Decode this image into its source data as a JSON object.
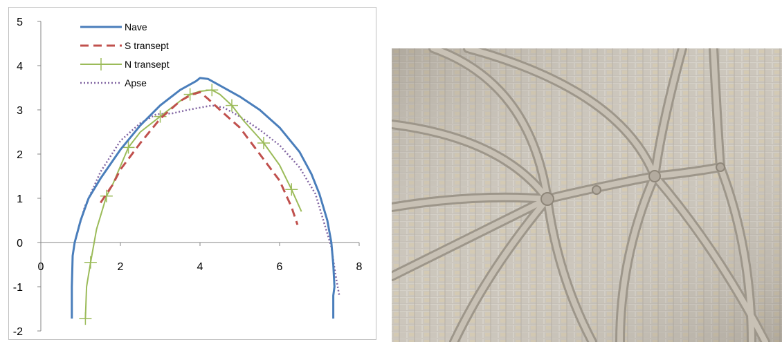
{
  "chart_data": {
    "type": "line",
    "title": "",
    "xlabel": "",
    "ylabel": "",
    "xlim": [
      0,
      8
    ],
    "ylim": [
      -2,
      5
    ],
    "x_ticks": [
      0,
      2,
      4,
      6,
      8
    ],
    "y_ticks": [
      -2,
      -1,
      0,
      1,
      2,
      3,
      4,
      5
    ],
    "grid": false,
    "legend_position": "top-left",
    "series": [
      {
        "name": "Nave",
        "color": "#4a7ebb",
        "style": "solid",
        "points": [
          [
            0.78,
            -1.72
          ],
          [
            0.78,
            -1.0
          ],
          [
            0.8,
            -0.3
          ],
          [
            0.85,
            0.0
          ],
          [
            1.0,
            0.5
          ],
          [
            1.2,
            1.0
          ],
          [
            1.5,
            1.45
          ],
          [
            2.0,
            2.1
          ],
          [
            2.5,
            2.65
          ],
          [
            3.0,
            3.1
          ],
          [
            3.5,
            3.45
          ],
          [
            3.9,
            3.65
          ],
          [
            4.0,
            3.72
          ],
          [
            4.2,
            3.7
          ],
          [
            4.5,
            3.55
          ],
          [
            5.0,
            3.3
          ],
          [
            5.5,
            3.0
          ],
          [
            6.0,
            2.6
          ],
          [
            6.5,
            2.05
          ],
          [
            6.8,
            1.55
          ],
          [
            7.0,
            1.1
          ],
          [
            7.2,
            0.5
          ],
          [
            7.3,
            0.0
          ],
          [
            7.35,
            -0.5
          ],
          [
            7.38,
            -1.0
          ],
          [
            7.35,
            -1.2
          ],
          [
            7.35,
            -1.72
          ]
        ]
      },
      {
        "name": "S transept",
        "color": "#c0504d",
        "style": "dashed",
        "points": [
          [
            1.5,
            0.9
          ],
          [
            1.8,
            1.3
          ],
          [
            2.0,
            1.65
          ],
          [
            2.5,
            2.25
          ],
          [
            3.0,
            2.8
          ],
          [
            3.5,
            3.2
          ],
          [
            3.8,
            3.35
          ],
          [
            4.0,
            3.4
          ],
          [
            4.2,
            3.25
          ],
          [
            4.5,
            3.0
          ],
          [
            5.0,
            2.6
          ],
          [
            5.5,
            2.0
          ],
          [
            6.0,
            1.4
          ],
          [
            6.3,
            0.8
          ],
          [
            6.45,
            0.4
          ]
        ]
      },
      {
        "name": "N transept",
        "color": "#9bbb59",
        "style": "solid-markers",
        "points": [
          [
            1.12,
            -1.72
          ],
          [
            1.15,
            -1.0
          ],
          [
            1.25,
            -0.45
          ],
          [
            1.4,
            0.3
          ],
          [
            1.65,
            1.05
          ],
          [
            1.8,
            1.3
          ],
          [
            2.2,
            2.15
          ],
          [
            2.5,
            2.5
          ],
          [
            3.0,
            2.85
          ],
          [
            3.5,
            3.2
          ],
          [
            3.75,
            3.35
          ],
          [
            4.0,
            3.42
          ],
          [
            4.3,
            3.45
          ],
          [
            4.5,
            3.35
          ],
          [
            4.8,
            3.1
          ],
          [
            5.1,
            2.75
          ],
          [
            5.6,
            2.25
          ],
          [
            6.0,
            1.75
          ],
          [
            6.3,
            1.2
          ],
          [
            6.55,
            0.7
          ]
        ]
      },
      {
        "name": "Apse",
        "color": "#8064a2",
        "style": "dotted",
        "points": [
          [
            0.85,
            0.0
          ],
          [
            1.1,
            0.8
          ],
          [
            1.5,
            1.6
          ],
          [
            2.0,
            2.3
          ],
          [
            2.5,
            2.7
          ],
          [
            2.9,
            2.9
          ],
          [
            3.3,
            2.92
          ],
          [
            3.7,
            3.0
          ],
          [
            4.0,
            3.05
          ],
          [
            4.3,
            3.1
          ],
          [
            4.6,
            3.05
          ],
          [
            5.0,
            2.85
          ],
          [
            5.5,
            2.55
          ],
          [
            6.0,
            2.2
          ],
          [
            6.5,
            1.7
          ],
          [
            6.9,
            1.1
          ],
          [
            7.1,
            0.5
          ],
          [
            7.3,
            -0.1
          ],
          [
            7.4,
            -0.7
          ],
          [
            7.5,
            -1.2
          ]
        ]
      }
    ]
  },
  "photo": {
    "description_icon": "rib-vault-photo",
    "stone_color": "#cfcac1",
    "rib_color": "#b6afa4",
    "shadow_color": "#9c9488"
  }
}
